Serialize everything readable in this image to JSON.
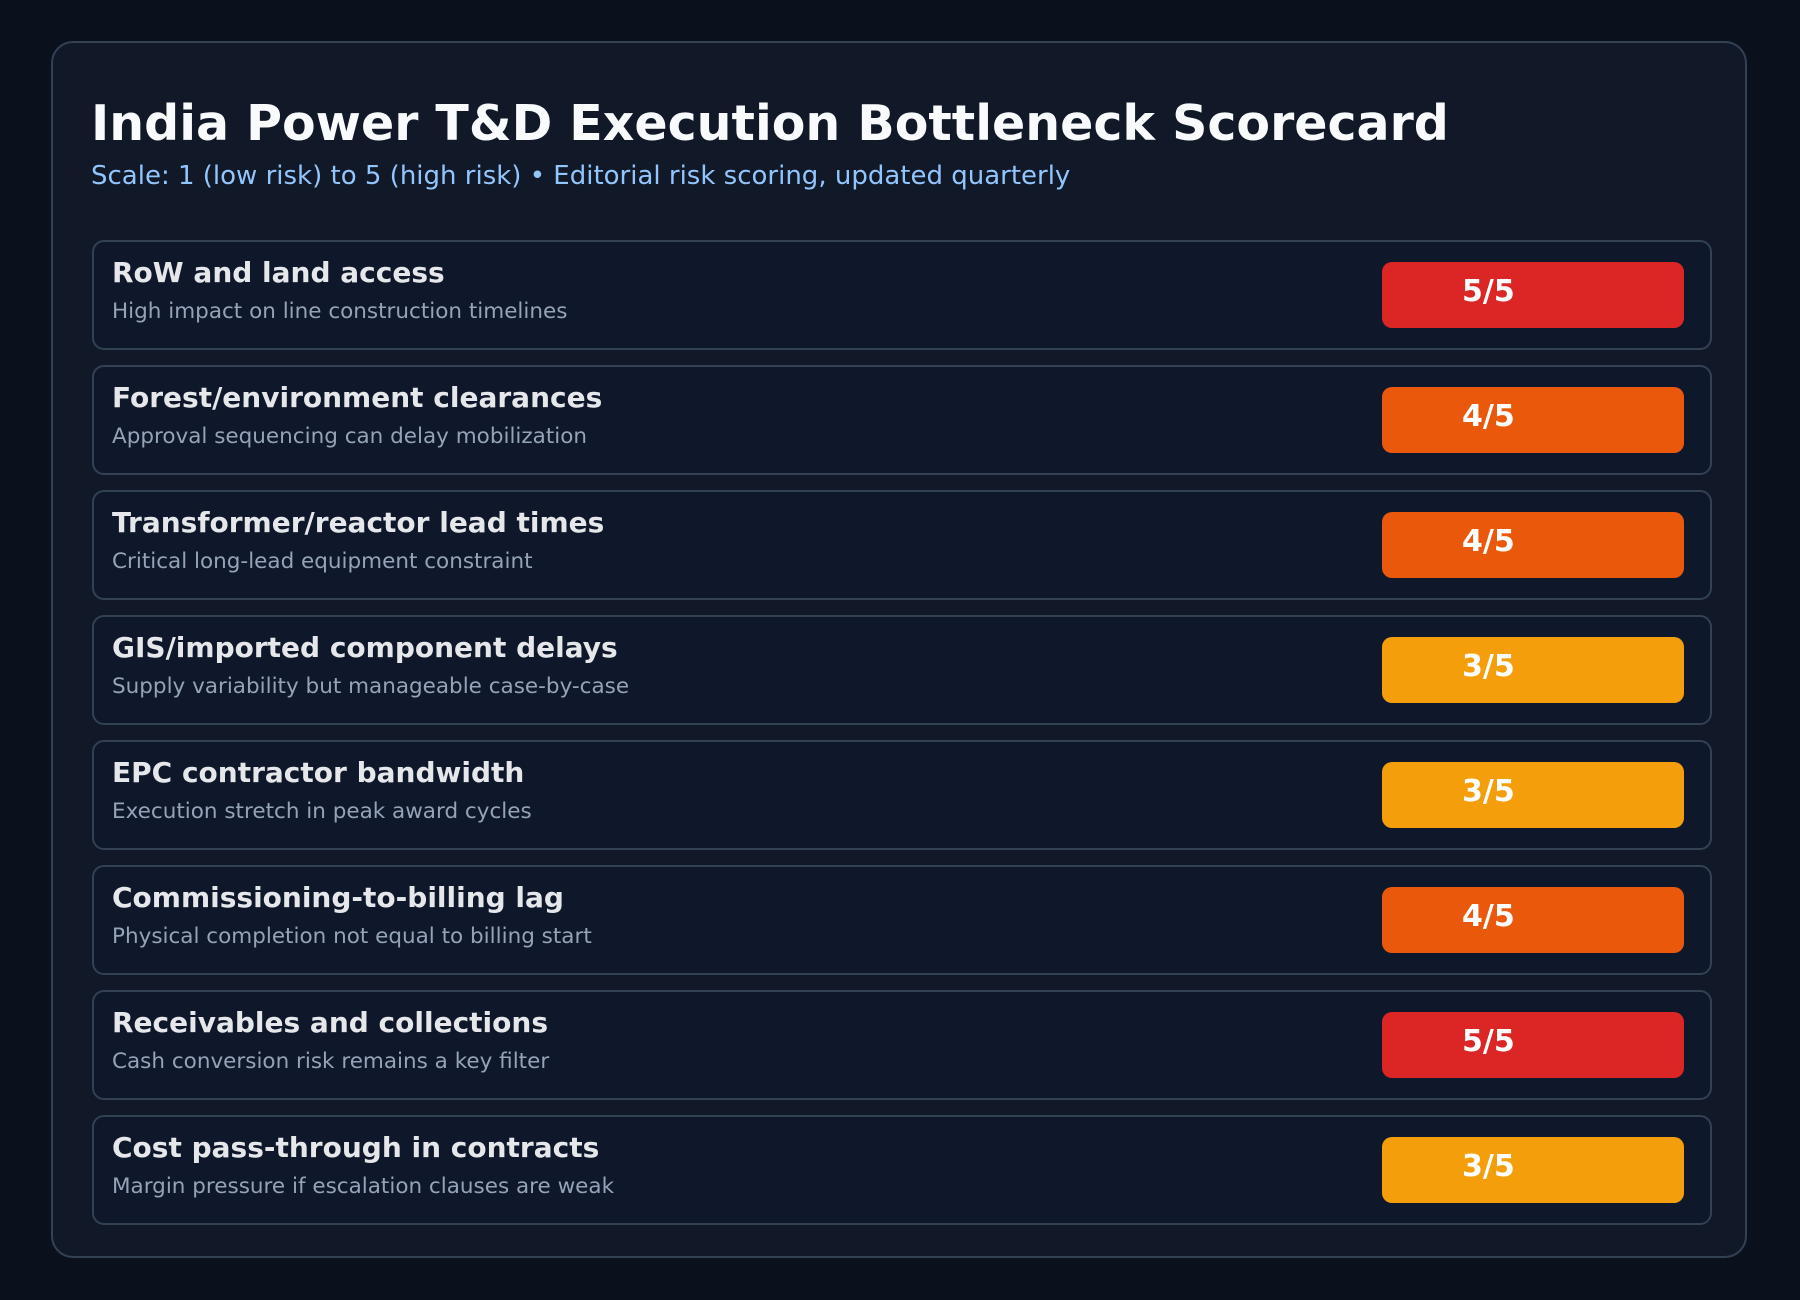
{
  "header": {
    "title": "India Power T&D Execution Bottleneck Scorecard",
    "subtitle": "Scale: 1 (low risk) to 5 (high risk) • Editorial risk scoring, updated quarterly"
  },
  "colors": {
    "score_5": "#dc2626",
    "score_4": "#ea580c",
    "score_3": "#f59e0b"
  },
  "rows": [
    {
      "title": "RoW and land access",
      "desc": "High impact on line construction timelines",
      "score": 5,
      "label": "5/5"
    },
    {
      "title": "Forest/environment clearances",
      "desc": "Approval sequencing can delay mobilization",
      "score": 4,
      "label": "4/5"
    },
    {
      "title": "Transformer/reactor lead times",
      "desc": "Critical long-lead equipment constraint",
      "score": 4,
      "label": "4/5"
    },
    {
      "title": "GIS/imported component delays",
      "desc": "Supply variability but manageable case-by-case",
      "score": 3,
      "label": "3/5"
    },
    {
      "title": "EPC contractor bandwidth",
      "desc": "Execution stretch in peak award cycles",
      "score": 3,
      "label": "3/5"
    },
    {
      "title": "Commissioning-to-billing lag",
      "desc": "Physical completion not equal to billing start",
      "score": 4,
      "label": "4/5"
    },
    {
      "title": "Receivables and collections",
      "desc": "Cash conversion risk remains a key filter",
      "score": 5,
      "label": "5/5"
    },
    {
      "title": "Cost pass-through in contracts",
      "desc": "Margin pressure if escalation clauses are weak",
      "score": 3,
      "label": "3/5"
    }
  ]
}
